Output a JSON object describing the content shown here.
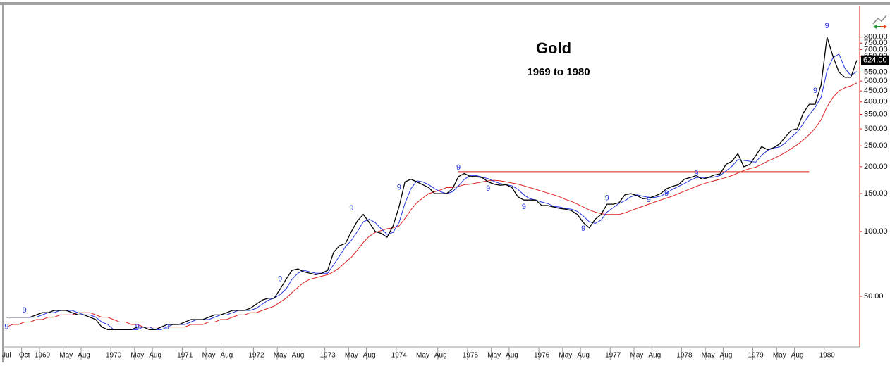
{
  "chart_data": {
    "type": "line",
    "title": "Gold",
    "subtitle": "1969 to 1980",
    "log_scale": true,
    "grid": false,
    "categories": [
      "Jul",
      null,
      null,
      "Oct",
      null,
      null,
      "1969",
      null,
      null,
      null,
      "May",
      null,
      null,
      "Aug",
      null,
      null,
      null,
      null,
      "1970",
      null,
      null,
      null,
      "May",
      null,
      null,
      "Aug",
      null,
      null,
      null,
      null,
      "1971",
      null,
      null,
      null,
      "May",
      null,
      null,
      "Aug",
      null,
      null,
      null,
      null,
      "1972",
      null,
      null,
      null,
      "May",
      null,
      null,
      "Aug",
      null,
      null,
      null,
      null,
      "1973",
      null,
      null,
      null,
      "May",
      null,
      null,
      "Aug",
      null,
      null,
      null,
      null,
      "1974",
      null,
      null,
      null,
      "May",
      null,
      null,
      "Aug",
      null,
      null,
      null,
      null,
      "1975",
      null,
      null,
      null,
      "May",
      null,
      null,
      "Aug",
      null,
      null,
      null,
      null,
      "1976",
      null,
      null,
      null,
      "May",
      null,
      null,
      "Aug",
      null,
      null,
      null,
      null,
      "1977",
      null,
      null,
      null,
      "May",
      null,
      null,
      "Aug",
      null,
      null,
      null,
      null,
      "1978",
      null,
      null,
      null,
      "May",
      null,
      null,
      "Aug",
      null,
      null,
      null,
      null,
      "1979",
      null,
      null,
      null,
      "May",
      null,
      null,
      "Aug",
      null,
      null,
      null,
      null,
      "1980",
      null,
      null,
      null,
      null,
      null
    ],
    "series": [
      {
        "color": "#000000",
        "values": [
          40,
          40,
          40,
          40,
          40,
          41,
          42,
          42,
          43,
          43,
          43,
          42,
          41,
          41,
          40,
          39,
          36,
          35,
          35,
          35,
          35,
          35,
          36,
          36,
          35,
          35,
          36,
          37,
          37,
          37,
          38,
          39,
          39,
          39,
          40,
          41,
          41,
          42,
          43,
          43,
          43,
          44,
          46,
          48,
          49,
          49,
          54,
          60,
          66,
          67,
          65,
          64,
          63,
          64,
          66,
          80,
          86,
          88,
          100,
          112,
          120,
          110,
          100,
          98,
          94,
          106,
          130,
          170,
          175,
          170,
          165,
          160,
          150,
          150,
          150,
          158,
          180,
          186,
          180,
          180,
          178,
          170,
          166,
          164,
          165,
          160,
          145,
          140,
          140,
          140,
          132,
          132,
          130,
          128,
          127,
          125,
          120,
          110,
          104,
          114,
          120,
          134,
          134,
          136,
          148,
          150,
          147,
          142,
          143,
          146,
          150,
          158,
          162,
          165,
          175,
          178,
          182,
          175,
          178,
          183,
          185,
          205,
          212,
          230,
          200,
          205,
          225,
          248,
          240,
          245,
          255,
          275,
          296,
          300,
          355,
          390,
          390,
          480,
          800,
          650,
          550,
          520,
          520,
          624
        ]
      },
      {
        "color": "#2233dd",
        "values": [
          40,
          40,
          40,
          40,
          40,
          40,
          41,
          42,
          42,
          43,
          43,
          43,
          42,
          41,
          41,
          40,
          38,
          37,
          35,
          35,
          35,
          35,
          35,
          36,
          36,
          35,
          35,
          36,
          37,
          37,
          37,
          38,
          39,
          39,
          39,
          40,
          41,
          41,
          42,
          43,
          43,
          43,
          44,
          46,
          48,
          49,
          51,
          54,
          60,
          64,
          66,
          65,
          64,
          64,
          64,
          70,
          77,
          85,
          91,
          100,
          111,
          114,
          110,
          103,
          97,
          99,
          110,
          135,
          158,
          172,
          170,
          165,
          158,
          153,
          150,
          153,
          163,
          175,
          182,
          182,
          179,
          176,
          171,
          167,
          165,
          163,
          157,
          148,
          142,
          140,
          137,
          135,
          131,
          130,
          128,
          127,
          124,
          118,
          111,
          109,
          113,
          123,
          129,
          135,
          139,
          145,
          148,
          146,
          144,
          144,
          146,
          151,
          157,
          162,
          167,
          173,
          178,
          178,
          178,
          179,
          182,
          191,
          201,
          216,
          214,
          212,
          210,
          226,
          238,
          244,
          247,
          258,
          275,
          290,
          317,
          348,
          378,
          420,
          557,
          643,
          667,
          573,
          530,
          553
        ]
      },
      {
        "color": "#dd2222",
        "values": [
          36,
          37,
          37,
          38,
          38,
          39,
          39,
          40,
          40,
          41,
          41,
          41,
          42,
          42,
          42,
          41,
          40,
          40,
          39,
          38,
          38,
          37,
          37,
          36,
          36,
          36,
          36,
          36,
          36,
          36,
          36,
          37,
          37,
          37,
          38,
          38,
          39,
          39,
          40,
          41,
          41,
          42,
          42,
          43,
          44,
          45,
          47,
          49,
          52,
          55,
          58,
          60,
          61,
          62,
          63,
          65,
          68,
          72,
          76,
          82,
          89,
          95,
          99,
          101,
          103,
          104,
          106,
          115,
          126,
          136,
          143,
          150,
          153,
          156,
          160,
          160,
          162,
          165,
          166,
          168,
          170,
          172,
          173,
          172,
          170,
          168,
          166,
          163,
          160,
          157,
          154,
          151,
          148,
          145,
          141,
          138,
          134,
          130,
          126,
          123,
          121,
          120,
          120,
          120,
          122,
          125,
          128,
          131,
          134,
          137,
          140,
          143,
          146,
          150,
          154,
          158,
          162,
          166,
          169,
          172,
          175,
          178,
          182,
          187,
          192,
          196,
          199,
          205,
          212,
          218,
          225,
          233,
          243,
          253,
          266,
          282,
          302,
          330,
          380,
          420,
          450,
          465,
          475,
          490
        ]
      }
    ],
    "ylim": [
      29.3,
      1120
    ],
    "yticks": [
      {
        "value": 50,
        "label": "50.00"
      },
      {
        "value": 100,
        "label": "100.00"
      },
      {
        "value": 150,
        "label": "150.00"
      },
      {
        "value": 200,
        "label": "200.00"
      },
      {
        "value": 250,
        "label": "250.00"
      },
      {
        "value": 300,
        "label": "300.00"
      },
      {
        "value": 350,
        "label": "350.00"
      },
      {
        "value": 400,
        "label": "400.00"
      },
      {
        "value": 450,
        "label": "450.00"
      },
      {
        "value": 500,
        "label": "500.00"
      },
      {
        "value": 550,
        "label": "550.00"
      },
      {
        "value": 650,
        "label": "650.00"
      },
      {
        "value": 700,
        "label": "700.00"
      },
      {
        "value": 750,
        "label": "750.00"
      },
      {
        "value": 800,
        "label": "800.00"
      }
    ],
    "last_value": {
      "value": 624,
      "label": "624.00"
    },
    "hline": {
      "value": 189,
      "color": "#dd2222",
      "x_range": [
        76,
        135
      ]
    },
    "annotations": [
      {
        "x": 3,
        "value": 43,
        "label": "9"
      },
      {
        "x": 0,
        "value": 36,
        "label": "9"
      },
      {
        "x": 22,
        "value": 36,
        "label": "9"
      },
      {
        "x": 27,
        "value": 36,
        "label": "9"
      },
      {
        "x": 46,
        "value": 60,
        "label": "9"
      },
      {
        "x": 58,
        "value": 128,
        "label": "9"
      },
      {
        "x": 66,
        "value": 160,
        "label": "9"
      },
      {
        "x": 76,
        "value": 198,
        "label": "9"
      },
      {
        "x": 81,
        "value": 158,
        "label": "9"
      },
      {
        "x": 87,
        "value": 130,
        "label": "9"
      },
      {
        "x": 97,
        "value": 103,
        "label": "9"
      },
      {
        "x": 101,
        "value": 143,
        "label": "9"
      },
      {
        "x": 108,
        "value": 140,
        "label": "9"
      },
      {
        "x": 111,
        "value": 150,
        "label": "9"
      },
      {
        "x": 116,
        "value": 186,
        "label": "9"
      },
      {
        "x": 136,
        "value": 450,
        "label": "9"
      },
      {
        "x": 138,
        "value": 900,
        "label": "9"
      }
    ]
  }
}
